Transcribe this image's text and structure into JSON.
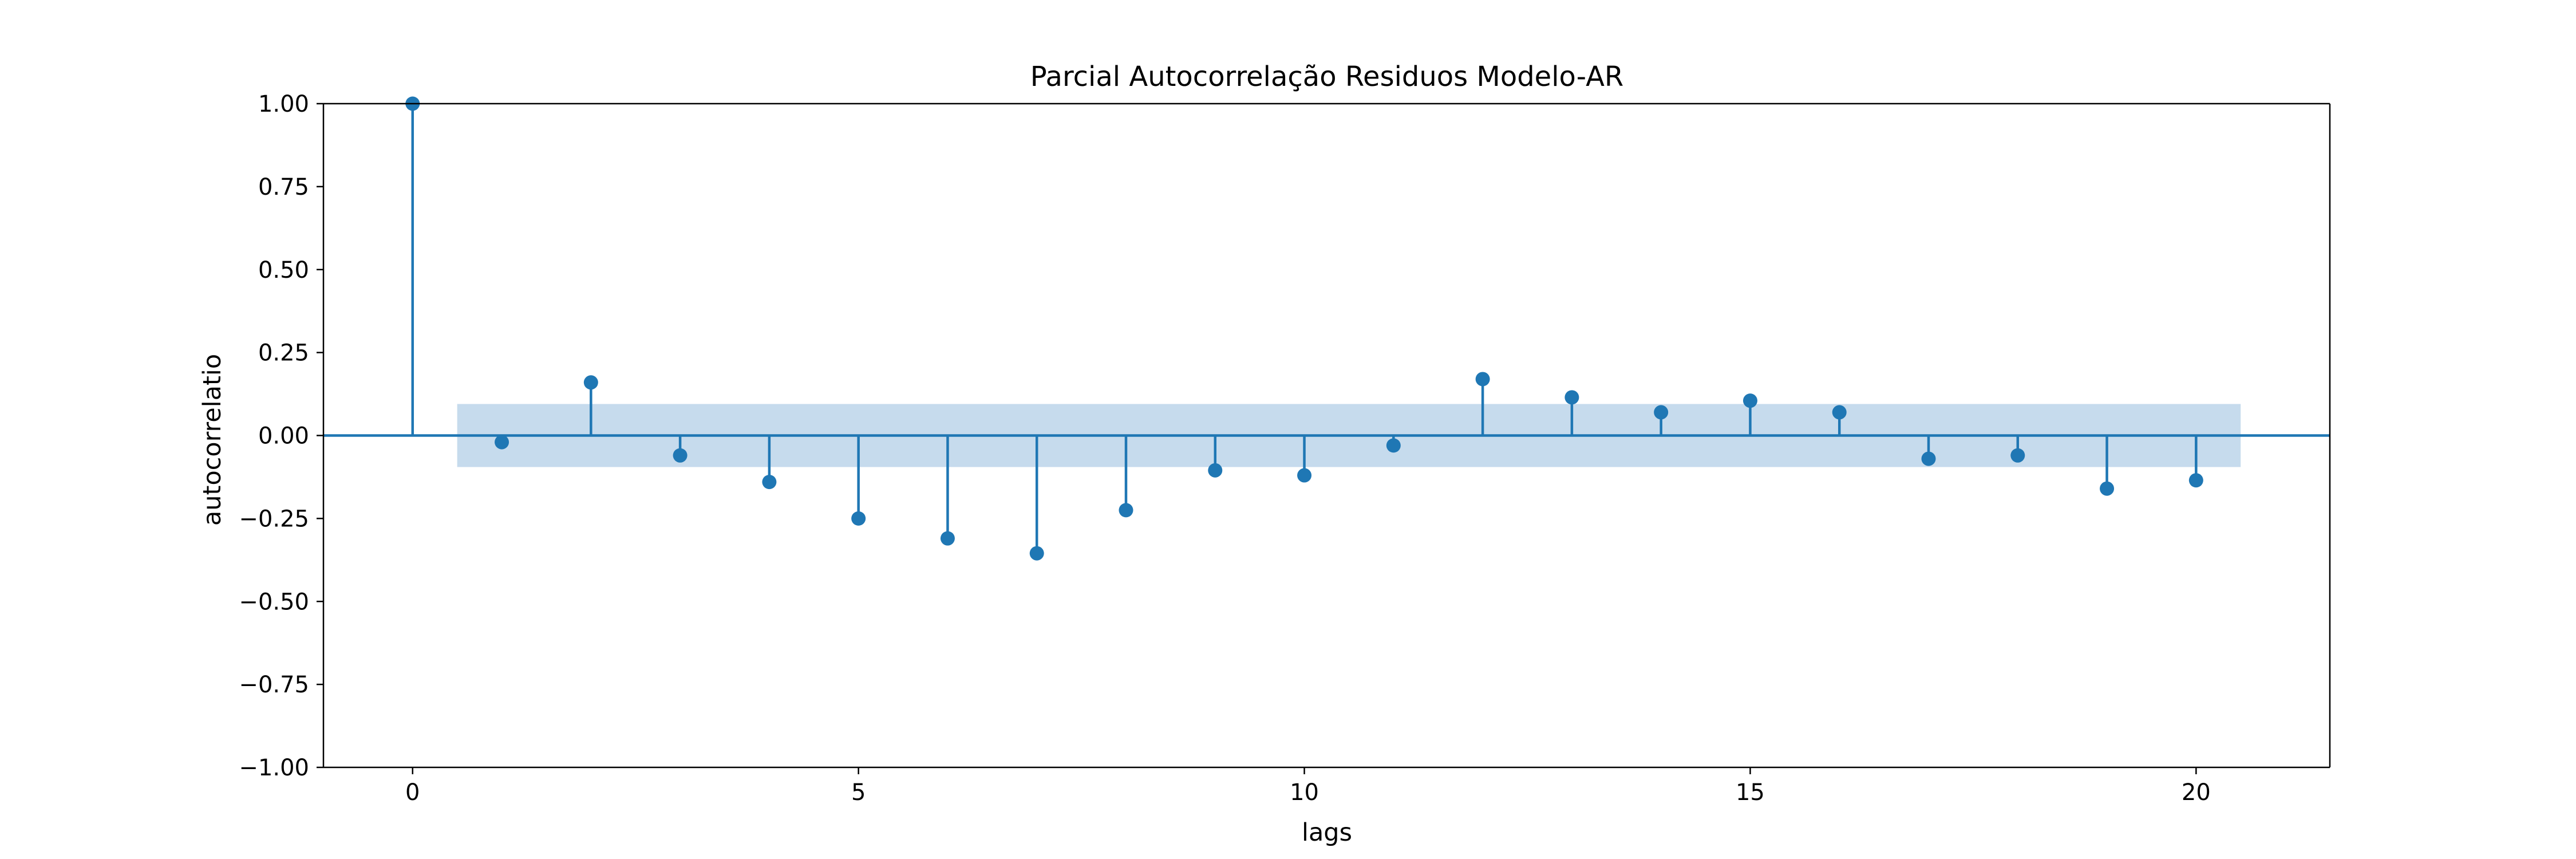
{
  "chart_data": {
    "type": "stem",
    "title": "Parcial Autocorrelação Residuos Modelo-AR",
    "xlabel": "lags",
    "ylabel": "autocorrelatio",
    "xlim": [
      -1,
      21.5
    ],
    "ylim": [
      -1.0,
      1.0
    ],
    "x_ticks": [
      0,
      5,
      10,
      15,
      20
    ],
    "y_ticks": [
      "1.00",
      "0.75",
      "0.50",
      "0.25",
      "0.00",
      "−0.25",
      "−0.50",
      "−0.75",
      "−1.00"
    ],
    "y_tick_values": [
      1.0,
      0.75,
      0.5,
      0.25,
      0.0,
      -0.25,
      -0.5,
      -0.75,
      -1.0
    ],
    "lags": [
      0,
      1,
      2,
      3,
      4,
      5,
      6,
      7,
      8,
      9,
      10,
      11,
      12,
      13,
      14,
      15,
      16,
      17,
      18,
      19,
      20
    ],
    "values": [
      1.0,
      -0.02,
      0.16,
      -0.06,
      -0.14,
      -0.25,
      -0.31,
      -0.355,
      -0.225,
      -0.105,
      -0.12,
      -0.03,
      0.17,
      0.115,
      0.07,
      0.105,
      0.07,
      -0.07,
      -0.06,
      -0.16,
      -0.135
    ],
    "confidence_band": {
      "lower": -0.095,
      "upper": 0.095,
      "x_start": 0.5,
      "x_end": 20.5
    },
    "grid": false,
    "colors": {
      "stem": "#1f77b4",
      "marker": "#1f77b4",
      "band": "#c6dbed",
      "zero_line": "#1f77b4",
      "axes": "#000000"
    }
  }
}
